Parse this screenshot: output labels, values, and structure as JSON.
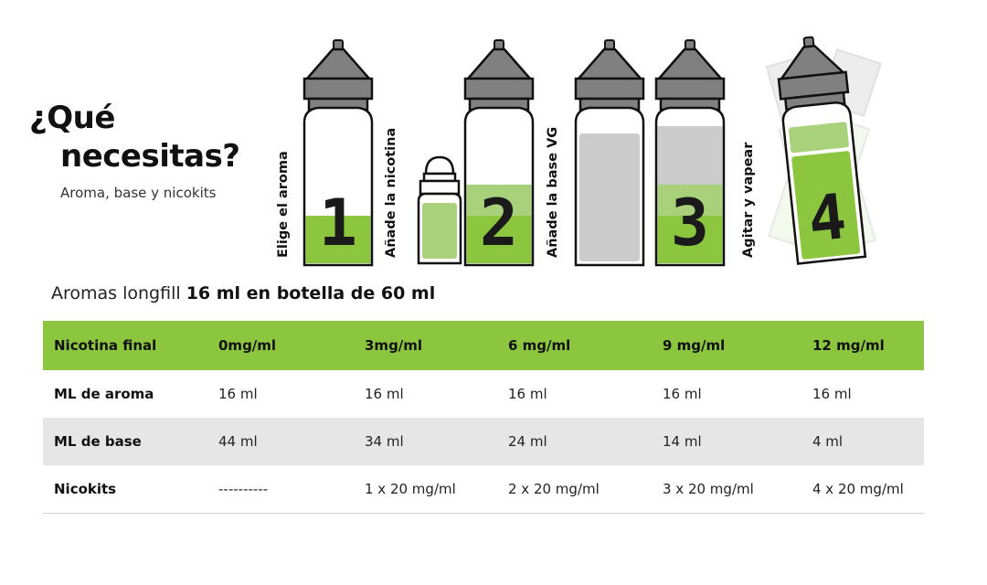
{
  "header": {
    "title_line1": "¿Qué",
    "title_line2": "necesitas?",
    "subtitle": "Aroma, base y nicokits"
  },
  "steps": [
    {
      "number": "1",
      "label": "Elige el aroma"
    },
    {
      "number": "2",
      "label": "Añade la nicotina"
    },
    {
      "number": "3",
      "label": "Añade la base VG"
    },
    {
      "number": "4",
      "label": "Agitar y vapear"
    }
  ],
  "section": {
    "heading_prefix": "Aromas longfill ",
    "heading_bold": "16 ml en botella de 60 ml"
  },
  "table": {
    "columns": [
      "Nicotina final",
      "0mg/ml",
      "3mg/ml",
      "6 mg/ml",
      "9 mg/ml",
      "12 mg/ml"
    ],
    "rows": [
      {
        "label": "ML de aroma",
        "values": [
          "16 ml",
          "16 ml",
          "16 ml",
          "16 ml",
          "16 ml"
        ]
      },
      {
        "label": "ML de base",
        "values": [
          "44 ml",
          "34 ml",
          "24 ml",
          "14 ml",
          "4 ml"
        ]
      },
      {
        "label": "Nicokits",
        "values": [
          "----------",
          "1 x 20 mg/ml",
          "2 x 20 mg/ml",
          "3 x 20 mg/ml",
          "4 x 20 mg/ml"
        ]
      }
    ]
  },
  "colors": {
    "accent_green": "#8cc63f",
    "light_green": "#a9d07a",
    "cap_gray": "#808080",
    "base_gray": "#cccccc",
    "row_alt": "#e6e6e6"
  }
}
